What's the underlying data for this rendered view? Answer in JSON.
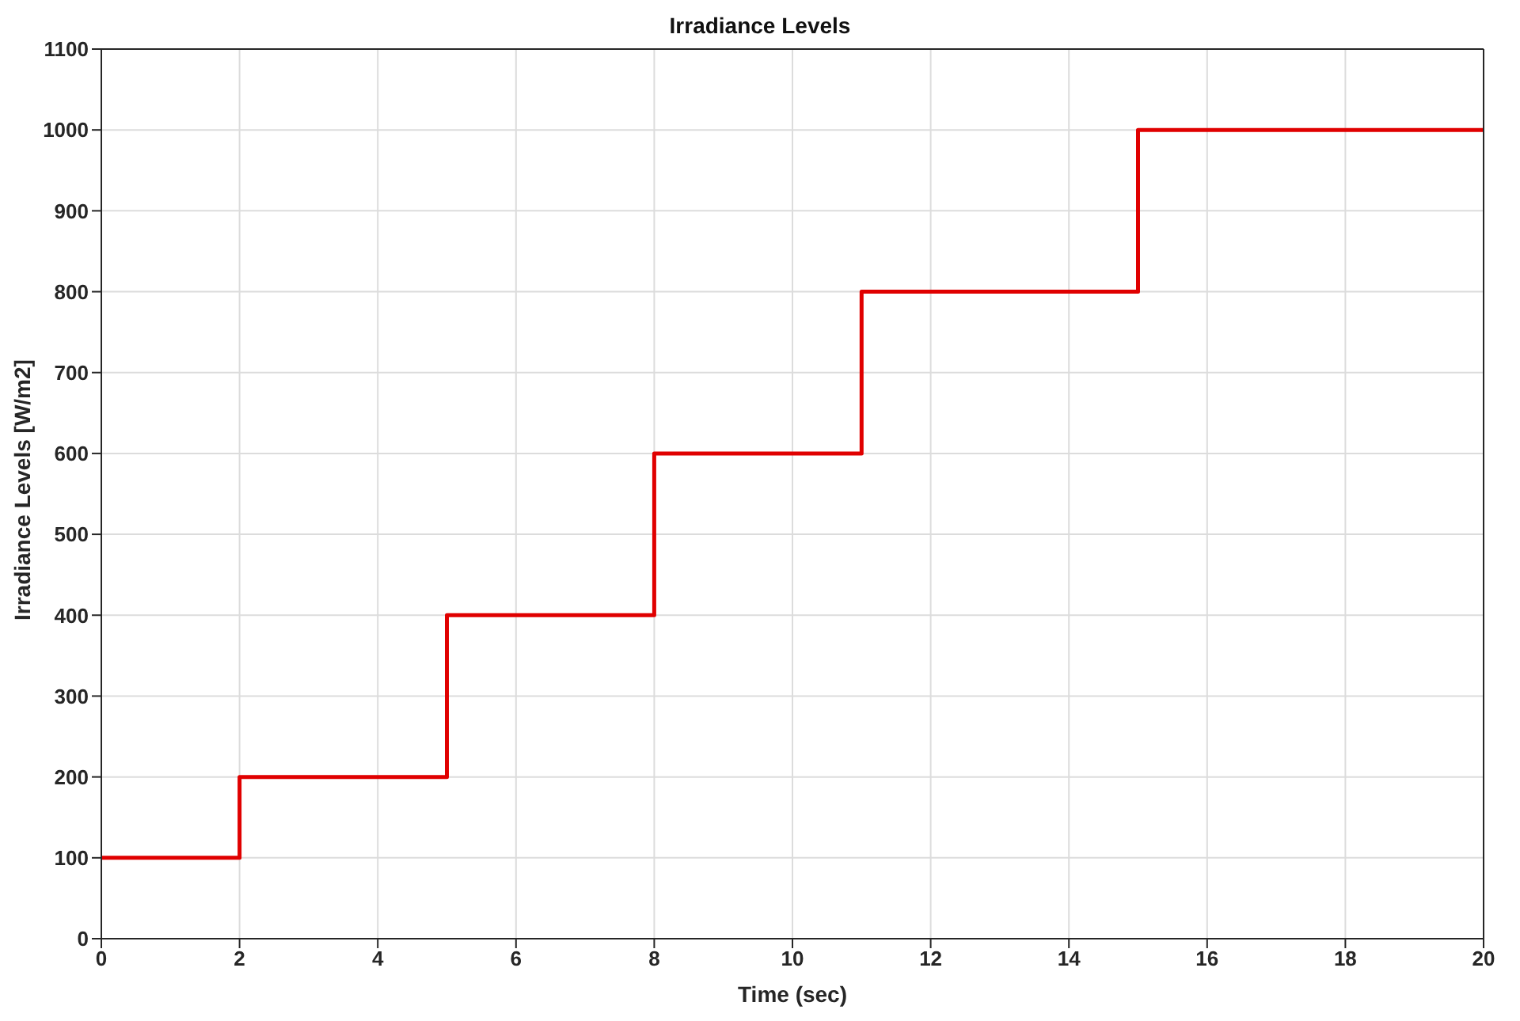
{
  "chart_data": {
    "type": "step",
    "title": "Irradiance Levels",
    "xlabel": "Time (sec)",
    "ylabel": "Irradiance Levels [W/m2]",
    "x": [
      0,
      2,
      5,
      8,
      11,
      15,
      20
    ],
    "series": [
      {
        "color": "#e00000",
        "values": [
          100,
          200,
          400,
          600,
          800,
          1000,
          1000
        ]
      }
    ],
    "xlim": [
      0,
      20
    ],
    "xticks": [
      0,
      2,
      4,
      6,
      8,
      10,
      12,
      14,
      16,
      18,
      20
    ],
    "ylim": [
      0,
      1100
    ],
    "yticks": [
      0,
      100,
      200,
      300,
      400,
      500,
      600,
      700,
      800,
      900,
      1000,
      1100
    ],
    "grid": true,
    "legend": false
  }
}
